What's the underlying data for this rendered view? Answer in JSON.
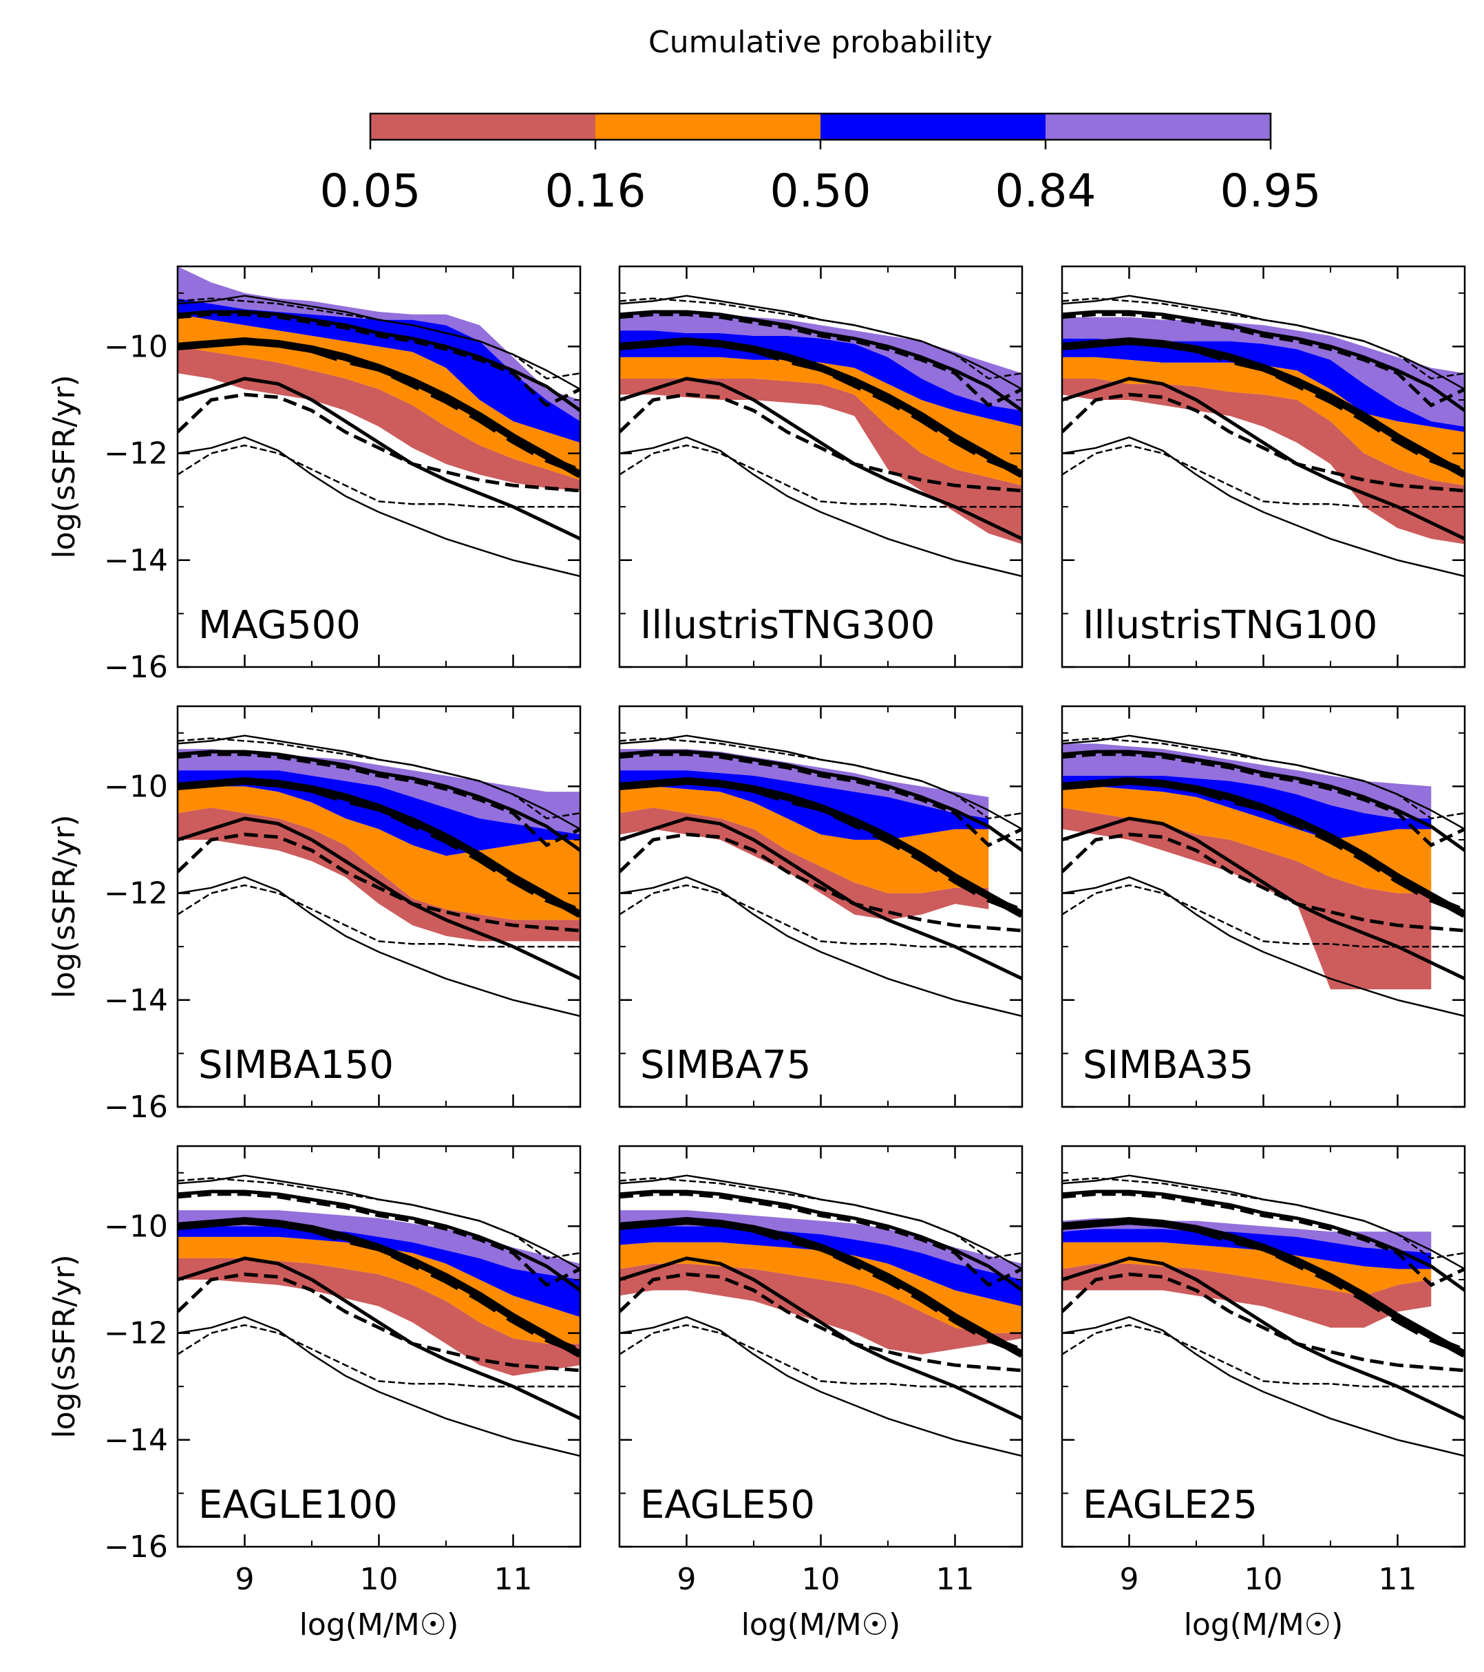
{
  "figure": {
    "colorbar": {
      "title": "Cumulative probability",
      "tick_labels": [
        "0.05",
        "0.16",
        "0.50",
        "0.84",
        "0.95"
      ],
      "colors": [
        "#cd5c5c",
        "#ff8c00",
        "#0000ff",
        "#9370db"
      ]
    },
    "axes_text": {
      "ylabel": "log(sSFR/yr)",
      "xlabel": "log(M/M☉)",
      "x_tick_labels": [
        "9",
        "10",
        "11"
      ],
      "y_tick_labels": [
        "−10",
        "−12",
        "−14",
        "−16"
      ]
    }
  },
  "chart_data": {
    "type": "area",
    "xlim": [
      8.5,
      11.5
    ],
    "ylim": [
      -16,
      -8.5
    ],
    "xlabel": "log(M/M☉)",
    "ylabel": "log(sSFR/yr)",
    "x": [
      8.5,
      8.75,
      9.0,
      9.25,
      9.5,
      9.75,
      10.0,
      10.25,
      10.5,
      10.75,
      11.0,
      11.25,
      11.5
    ],
    "reference_lines": {
      "solid": [
        {
          "name": "p95",
          "y": [
            -9.2,
            -9.15,
            -9.05,
            -9.15,
            -9.25,
            -9.35,
            -9.5,
            -9.6,
            -9.75,
            -9.9,
            -10.15,
            -10.45,
            -10.8
          ]
        },
        {
          "name": "p84",
          "y": [
            -9.4,
            -9.35,
            -9.35,
            -9.4,
            -9.5,
            -9.6,
            -9.75,
            -9.85,
            -10.0,
            -10.2,
            -10.45,
            -10.75,
            -11.2
          ]
        },
        {
          "name": "p50",
          "y": [
            -10.0,
            -9.95,
            -9.9,
            -9.95,
            -10.05,
            -10.2,
            -10.4,
            -10.65,
            -10.95,
            -11.3,
            -11.7,
            -12.05,
            -12.4
          ]
        },
        {
          "name": "p16",
          "y": [
            -11.0,
            -10.8,
            -10.6,
            -10.7,
            -11.0,
            -11.4,
            -11.8,
            -12.2,
            -12.5,
            -12.75,
            -13.0,
            -13.3,
            -13.6
          ]
        },
        {
          "name": "p05",
          "y": [
            -12.0,
            -11.9,
            -11.7,
            -11.95,
            -12.4,
            -12.8,
            -13.1,
            -13.35,
            -13.6,
            -13.8,
            -14.0,
            -14.15,
            -14.3
          ]
        }
      ],
      "dashed": [
        {
          "name": "p95",
          "y": [
            -9.15,
            -9.1,
            -9.15,
            -9.2,
            -9.3,
            -9.4,
            -9.5,
            -9.6,
            -9.75,
            -9.9,
            -10.15,
            -10.6,
            -10.5
          ]
        },
        {
          "name": "p84",
          "y": [
            -9.45,
            -9.4,
            -9.4,
            -9.45,
            -9.55,
            -9.65,
            -9.8,
            -9.9,
            -10.05,
            -10.25,
            -10.5,
            -11.1,
            -10.8
          ]
        },
        {
          "name": "p50",
          "y": [
            -10.0,
            -9.95,
            -9.9,
            -9.95,
            -10.05,
            -10.25,
            -10.4,
            -10.7,
            -11.0,
            -11.35,
            -11.75,
            -12.1,
            -12.35
          ]
        },
        {
          "name": "p16",
          "y": [
            -11.6,
            -11.0,
            -10.9,
            -10.95,
            -11.2,
            -11.6,
            -11.9,
            -12.2,
            -12.35,
            -12.5,
            -12.6,
            -12.65,
            -12.7
          ]
        },
        {
          "name": "p05",
          "y": [
            -12.4,
            -12.0,
            -11.85,
            -12.0,
            -12.3,
            -12.6,
            -12.9,
            -12.95,
            -12.95,
            -13.0,
            -13.0,
            -13.0,
            -13.0
          ]
        }
      ]
    },
    "panels": [
      {
        "label": "MAG500",
        "xmax": 11.5,
        "p05": [
          -10.5,
          -10.6,
          -10.8,
          -10.9,
          -11.0,
          -11.2,
          -11.5,
          -11.9,
          -12.2,
          -12.4,
          -12.55,
          -12.65,
          -12.7
        ],
        "p16": [
          -10.0,
          -10.1,
          -10.2,
          -10.3,
          -10.45,
          -10.6,
          -10.8,
          -11.1,
          -11.5,
          -11.85,
          -12.1,
          -12.3,
          -12.5
        ],
        "p50": [
          -9.4,
          -9.5,
          -9.6,
          -9.7,
          -9.8,
          -9.9,
          -10.0,
          -10.1,
          -10.4,
          -11.0,
          -11.4,
          -11.6,
          -11.8
        ],
        "p84": [
          -9.1,
          -9.2,
          -9.3,
          -9.35,
          -9.4,
          -9.45,
          -9.5,
          -9.5,
          -9.6,
          -9.9,
          -10.5,
          -11.0,
          -11.4
        ],
        "p95": [
          -8.5,
          -8.8,
          -9.0,
          -9.1,
          -9.15,
          -9.25,
          -9.35,
          -9.4,
          -9.4,
          -9.6,
          -10.2,
          -10.8,
          -11.0
        ]
      },
      {
        "label": "IllustrisTNG300",
        "xmax": 11.5,
        "p05": [
          -10.9,
          -10.9,
          -10.95,
          -11.0,
          -11.0,
          -11.05,
          -11.1,
          -11.3,
          -12.3,
          -12.7,
          -13.1,
          -13.5,
          -13.7
        ],
        "p16": [
          -10.6,
          -10.6,
          -10.6,
          -10.6,
          -10.6,
          -10.65,
          -10.7,
          -10.9,
          -11.5,
          -12.0,
          -12.3,
          -12.45,
          -12.6
        ],
        "p50": [
          -10.2,
          -10.2,
          -10.2,
          -10.2,
          -10.25,
          -10.25,
          -10.3,
          -10.4,
          -10.7,
          -11.0,
          -11.2,
          -11.35,
          -11.5
        ],
        "p84": [
          -9.7,
          -9.7,
          -9.75,
          -9.75,
          -9.8,
          -9.8,
          -9.85,
          -9.95,
          -10.2,
          -10.6,
          -10.9,
          -11.1,
          -11.2
        ],
        "p95": [
          -9.4,
          -9.35,
          -9.35,
          -9.4,
          -9.45,
          -9.5,
          -9.6,
          -9.7,
          -9.8,
          -9.9,
          -10.1,
          -10.3,
          -10.5
        ]
      },
      {
        "label": "IllustrisTNG100",
        "xmax": 11.5,
        "p05": [
          -10.9,
          -11.0,
          -11.0,
          -11.1,
          -11.2,
          -11.3,
          -11.5,
          -11.8,
          -12.2,
          -13.0,
          -13.4,
          -13.6,
          -13.7
        ],
        "p16": [
          -10.6,
          -10.6,
          -10.7,
          -10.7,
          -10.75,
          -10.85,
          -10.9,
          -11.0,
          -11.4,
          -12.0,
          -12.3,
          -12.5,
          -12.6
        ],
        "p50": [
          -10.2,
          -10.2,
          -10.25,
          -10.3,
          -10.3,
          -10.3,
          -10.35,
          -10.45,
          -10.8,
          -11.25,
          -11.4,
          -11.5,
          -11.6
        ],
        "p84": [
          -9.85,
          -9.85,
          -9.9,
          -9.9,
          -9.9,
          -9.9,
          -9.95,
          -10.05,
          -10.25,
          -10.7,
          -11.1,
          -11.4,
          -11.5
        ],
        "p95": [
          -9.45,
          -9.45,
          -9.45,
          -9.5,
          -9.5,
          -9.55,
          -9.6,
          -9.7,
          -9.8,
          -10.0,
          -10.2,
          -10.4,
          -10.5
        ]
      },
      {
        "label": "SIMBA150",
        "xmax": 11.5,
        "p05": [
          -11.0,
          -11.0,
          -11.1,
          -11.2,
          -11.4,
          -11.7,
          -12.2,
          -12.6,
          -12.8,
          -12.9,
          -12.9,
          -12.9,
          -12.9
        ],
        "p16": [
          -10.5,
          -10.4,
          -10.5,
          -10.6,
          -10.8,
          -11.1,
          -11.6,
          -12.1,
          -12.3,
          -12.4,
          -12.5,
          -12.5,
          -12.5
        ],
        "p50": [
          -10.0,
          -10.0,
          -10.0,
          -10.1,
          -10.3,
          -10.6,
          -10.8,
          -11.1,
          -11.3,
          -11.2,
          -11.1,
          -11.0,
          -11.0
        ],
        "p84": [
          -9.7,
          -9.7,
          -9.7,
          -9.7,
          -9.8,
          -9.9,
          -10.0,
          -10.2,
          -10.4,
          -10.6,
          -10.7,
          -10.8,
          -10.9
        ],
        "p95": [
          -9.3,
          -9.3,
          -9.35,
          -9.4,
          -9.45,
          -9.5,
          -9.6,
          -9.7,
          -9.8,
          -9.9,
          -10.0,
          -10.1,
          -10.1
        ]
      },
      {
        "label": "SIMBA75",
        "xmax": 11.3,
        "p05": [
          -10.9,
          -10.8,
          -10.9,
          -11.0,
          -11.3,
          -11.6,
          -12.0,
          -12.4,
          -12.5,
          -12.4,
          -12.2,
          -12.3
        ],
        "p16": [
          -10.5,
          -10.4,
          -10.5,
          -10.6,
          -10.8,
          -11.2,
          -11.5,
          -11.8,
          -12.0,
          -12.0,
          -11.9,
          -11.9
        ],
        "p50": [
          -10.0,
          -10.0,
          -10.05,
          -10.1,
          -10.3,
          -10.6,
          -10.9,
          -11.0,
          -11.0,
          -10.9,
          -10.8,
          -10.8
        ],
        "p84": [
          -9.7,
          -9.7,
          -9.7,
          -9.75,
          -9.8,
          -9.9,
          -10.0,
          -10.1,
          -10.2,
          -10.35,
          -10.5,
          -10.6
        ],
        "p95": [
          -9.3,
          -9.3,
          -9.3,
          -9.35,
          -9.45,
          -9.55,
          -9.65,
          -9.75,
          -9.9,
          -10.0,
          -10.1,
          -10.2
        ]
      },
      {
        "label": "SIMBA35",
        "xmax": 11.3,
        "p05": [
          -10.8,
          -10.9,
          -11.0,
          -11.2,
          -11.4,
          -11.6,
          -11.9,
          -12.2,
          -13.8,
          -13.8,
          -13.8,
          -13.8
        ],
        "p16": [
          -10.4,
          -10.5,
          -10.6,
          -10.7,
          -10.9,
          -11.0,
          -11.2,
          -11.4,
          -11.7,
          -11.9,
          -12.0,
          -12.0
        ],
        "p50": [
          -10.0,
          -10.0,
          -10.05,
          -10.1,
          -10.2,
          -10.4,
          -10.6,
          -10.8,
          -11.0,
          -10.9,
          -10.8,
          -10.8
        ],
        "p84": [
          -9.8,
          -9.8,
          -9.8,
          -9.8,
          -9.85,
          -9.9,
          -10.0,
          -10.15,
          -10.35,
          -10.5,
          -10.6,
          -10.6
        ],
        "p95": [
          -9.2,
          -9.2,
          -9.25,
          -9.3,
          -9.4,
          -9.5,
          -9.6,
          -9.7,
          -9.8,
          -9.9,
          -9.95,
          -10.0
        ]
      },
      {
        "label": "EAGLE100",
        "xmax": 11.5,
        "p05": [
          -11.0,
          -11.0,
          -11.05,
          -11.1,
          -11.2,
          -11.35,
          -11.5,
          -11.8,
          -12.2,
          -12.6,
          -12.8,
          -12.7,
          -12.6
        ],
        "p16": [
          -10.6,
          -10.6,
          -10.6,
          -10.65,
          -10.7,
          -10.8,
          -10.9,
          -11.1,
          -11.4,
          -11.8,
          -12.1,
          -12.2,
          -12.2
        ],
        "p50": [
          -10.2,
          -10.2,
          -10.2,
          -10.2,
          -10.25,
          -10.3,
          -10.4,
          -10.5,
          -10.7,
          -11.0,
          -11.3,
          -11.5,
          -11.7
        ],
        "p84": [
          -10.0,
          -10.0,
          -10.0,
          -10.0,
          -10.05,
          -10.1,
          -10.2,
          -10.3,
          -10.45,
          -10.6,
          -10.8,
          -10.9,
          -11.0
        ],
        "p95": [
          -9.7,
          -9.7,
          -9.7,
          -9.7,
          -9.75,
          -9.8,
          -9.85,
          -9.95,
          -10.05,
          -10.2,
          -10.4,
          -10.55,
          -10.7
        ]
      },
      {
        "label": "EAGLE50",
        "xmax": 11.5,
        "p05": [
          -11.3,
          -11.2,
          -11.2,
          -11.3,
          -11.4,
          -11.6,
          -11.8,
          -12.0,
          -12.3,
          -12.4,
          -12.3,
          -12.2,
          -12.1
        ],
        "p16": [
          -10.8,
          -10.7,
          -10.7,
          -10.75,
          -10.8,
          -10.9,
          -11.0,
          -11.1,
          -11.3,
          -11.6,
          -11.9,
          -12.0,
          -12.0
        ],
        "p50": [
          -10.35,
          -10.3,
          -10.3,
          -10.3,
          -10.35,
          -10.4,
          -10.45,
          -10.55,
          -10.7,
          -10.95,
          -11.2,
          -11.35,
          -11.5
        ],
        "p84": [
          -10.0,
          -10.0,
          -10.0,
          -10.0,
          -10.05,
          -10.1,
          -10.15,
          -10.25,
          -10.35,
          -10.5,
          -10.7,
          -10.85,
          -11.0
        ],
        "p95": [
          -9.7,
          -9.7,
          -9.7,
          -9.75,
          -9.8,
          -9.85,
          -9.9,
          -9.95,
          -10.05,
          -10.2,
          -10.4,
          -10.55,
          -10.7
        ]
      },
      {
        "label": "EAGLE25",
        "xmax": 11.2,
        "p05": [
          -11.2,
          -11.2,
          -11.2,
          -11.2,
          -11.3,
          -11.4,
          -11.5,
          -11.7,
          -11.9,
          -11.9,
          -11.6,
          -11.5
        ],
        "p16": [
          -10.8,
          -10.7,
          -10.7,
          -10.75,
          -10.8,
          -10.9,
          -11.0,
          -11.1,
          -11.2,
          -11.3,
          -11.1,
          -11.0
        ],
        "p50": [
          -10.3,
          -10.3,
          -10.3,
          -10.3,
          -10.35,
          -10.4,
          -10.45,
          -10.55,
          -10.65,
          -10.75,
          -10.8,
          -10.8
        ],
        "p84": [
          -10.1,
          -10.05,
          -10.05,
          -10.05,
          -10.1,
          -10.1,
          -10.15,
          -10.2,
          -10.3,
          -10.4,
          -10.45,
          -10.5
        ],
        "p95": [
          -9.9,
          -9.85,
          -9.85,
          -9.9,
          -9.9,
          -9.95,
          -10.0,
          -10.05,
          -10.1,
          -10.1,
          -10.1,
          -10.1
        ]
      }
    ]
  }
}
